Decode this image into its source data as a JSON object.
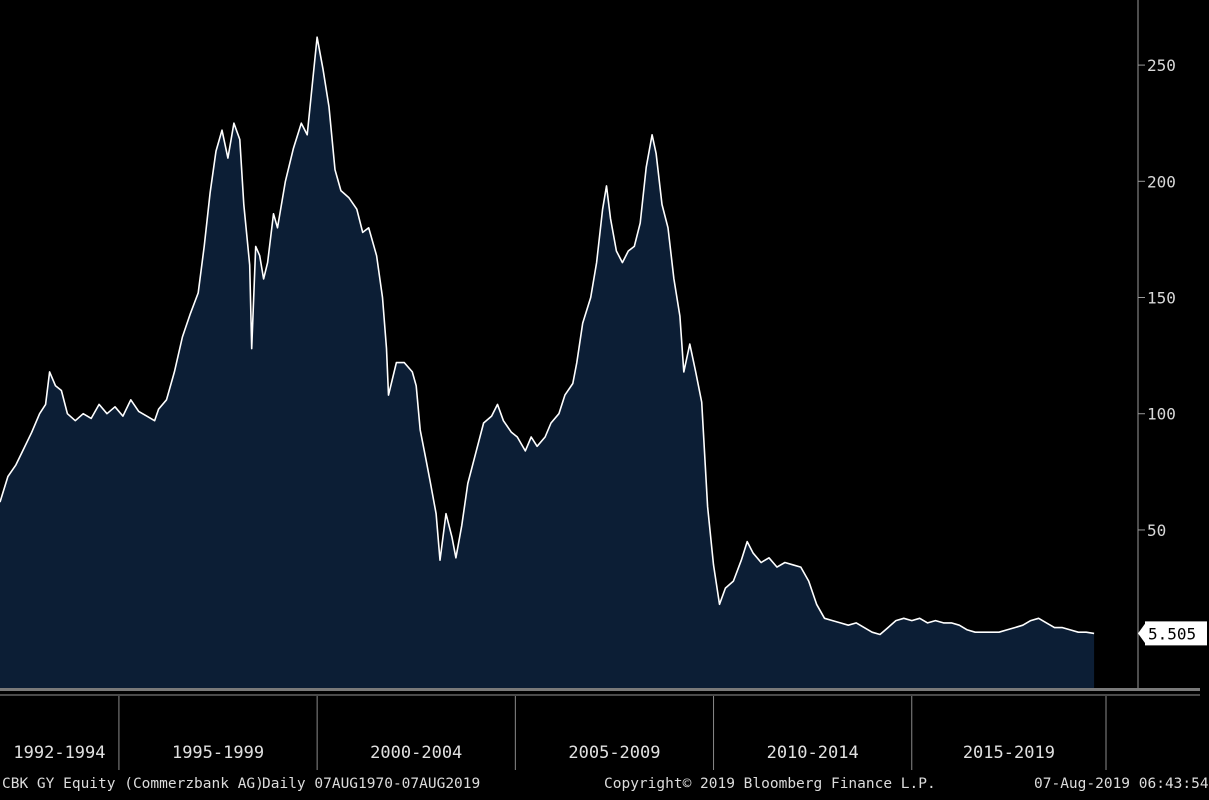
{
  "chart_data": {
    "type": "area",
    "last_value_label": "5.505",
    "x_period_labels": [
      "1992-1994",
      "1995-1999",
      "2000-2004",
      "2005-2009",
      "2010-2014",
      "2015-2019"
    ],
    "y_ticks": [
      50,
      100,
      150,
      200,
      250
    ],
    "ylim": [
      -18,
      278
    ],
    "xlim": [
      1992.0,
      2019.9
    ],
    "grid": false,
    "series": [
      {
        "points": [
          [
            1992.0,
            62
          ],
          [
            1992.2,
            73
          ],
          [
            1992.4,
            78
          ],
          [
            1992.6,
            85
          ],
          [
            1992.8,
            92
          ],
          [
            1993.0,
            100
          ],
          [
            1993.15,
            104
          ],
          [
            1993.25,
            118
          ],
          [
            1993.4,
            112
          ],
          [
            1993.55,
            110
          ],
          [
            1993.7,
            100
          ],
          [
            1993.9,
            97
          ],
          [
            1994.1,
            100
          ],
          [
            1994.3,
            98
          ],
          [
            1994.5,
            104
          ],
          [
            1994.7,
            100
          ],
          [
            1994.9,
            103
          ],
          [
            1995.1,
            99
          ],
          [
            1995.3,
            106
          ],
          [
            1995.5,
            101
          ],
          [
            1995.7,
            99
          ],
          [
            1995.9,
            97
          ],
          [
            1996.0,
            102
          ],
          [
            1996.2,
            106
          ],
          [
            1996.4,
            118
          ],
          [
            1996.6,
            133
          ],
          [
            1996.8,
            143
          ],
          [
            1997.0,
            152
          ],
          [
            1997.15,
            172
          ],
          [
            1997.3,
            195
          ],
          [
            1997.45,
            213
          ],
          [
            1997.6,
            222
          ],
          [
            1997.75,
            210
          ],
          [
            1997.9,
            225
          ],
          [
            1998.05,
            218
          ],
          [
            1998.15,
            190
          ],
          [
            1998.3,
            164
          ],
          [
            1998.35,
            128
          ],
          [
            1998.45,
            172
          ],
          [
            1998.55,
            168
          ],
          [
            1998.65,
            158
          ],
          [
            1998.75,
            165
          ],
          [
            1998.9,
            186
          ],
          [
            1999.0,
            180
          ],
          [
            1999.2,
            200
          ],
          [
            1999.4,
            214
          ],
          [
            1999.6,
            225
          ],
          [
            1999.75,
            220
          ],
          [
            1999.85,
            237
          ],
          [
            2000.0,
            262
          ],
          [
            2000.15,
            248
          ],
          [
            2000.3,
            232
          ],
          [
            2000.45,
            205
          ],
          [
            2000.6,
            196
          ],
          [
            2000.8,
            193
          ],
          [
            2001.0,
            188
          ],
          [
            2001.15,
            178
          ],
          [
            2001.3,
            180
          ],
          [
            2001.5,
            168
          ],
          [
            2001.65,
            150
          ],
          [
            2001.75,
            128
          ],
          [
            2001.8,
            108
          ],
          [
            2002.0,
            122
          ],
          [
            2002.2,
            122
          ],
          [
            2002.4,
            118
          ],
          [
            2002.5,
            112
          ],
          [
            2002.6,
            93
          ],
          [
            2002.75,
            80
          ],
          [
            2002.85,
            71
          ],
          [
            2003.0,
            57
          ],
          [
            2003.1,
            37
          ],
          [
            2003.25,
            57
          ],
          [
            2003.4,
            47
          ],
          [
            2003.5,
            38
          ],
          [
            2003.65,
            52
          ],
          [
            2003.8,
            70
          ],
          [
            2004.0,
            83
          ],
          [
            2004.2,
            96
          ],
          [
            2004.4,
            99
          ],
          [
            2004.55,
            104
          ],
          [
            2004.7,
            97
          ],
          [
            2004.9,
            92
          ],
          [
            2005.05,
            90
          ],
          [
            2005.25,
            84
          ],
          [
            2005.4,
            90
          ],
          [
            2005.55,
            86
          ],
          [
            2005.75,
            90
          ],
          [
            2005.9,
            96
          ],
          [
            2006.1,
            100
          ],
          [
            2006.25,
            108
          ],
          [
            2006.45,
            113
          ],
          [
            2006.55,
            122
          ],
          [
            2006.7,
            139
          ],
          [
            2006.9,
            150
          ],
          [
            2007.05,
            165
          ],
          [
            2007.2,
            188
          ],
          [
            2007.3,
            198
          ],
          [
            2007.4,
            184
          ],
          [
            2007.55,
            170
          ],
          [
            2007.7,
            165
          ],
          [
            2007.85,
            170
          ],
          [
            2008.0,
            172
          ],
          [
            2008.15,
            182
          ],
          [
            2008.3,
            206
          ],
          [
            2008.45,
            220
          ],
          [
            2008.55,
            212
          ],
          [
            2008.7,
            190
          ],
          [
            2008.85,
            180
          ],
          [
            2009.0,
            158
          ],
          [
            2009.15,
            142
          ],
          [
            2009.25,
            118
          ],
          [
            2009.4,
            130
          ],
          [
            2009.55,
            118
          ],
          [
            2009.7,
            105
          ],
          [
            2009.85,
            60
          ],
          [
            2010.0,
            35
          ],
          [
            2010.15,
            18
          ],
          [
            2010.3,
            25
          ],
          [
            2010.5,
            28
          ],
          [
            2010.7,
            37
          ],
          [
            2010.85,
            45
          ],
          [
            2011.0,
            40
          ],
          [
            2011.2,
            36
          ],
          [
            2011.4,
            38
          ],
          [
            2011.6,
            34
          ],
          [
            2011.8,
            36
          ],
          [
            2012.0,
            35
          ],
          [
            2012.2,
            34
          ],
          [
            2012.4,
            28
          ],
          [
            2012.6,
            18
          ],
          [
            2012.8,
            12
          ],
          [
            2013.0,
            11
          ],
          [
            2013.2,
            10
          ],
          [
            2013.4,
            9
          ],
          [
            2013.6,
            10
          ],
          [
            2013.8,
            8
          ],
          [
            2014.0,
            6
          ],
          [
            2014.2,
            5
          ],
          [
            2014.4,
            8
          ],
          [
            2014.6,
            11
          ],
          [
            2014.8,
            12
          ],
          [
            2015.0,
            11
          ],
          [
            2015.2,
            12
          ],
          [
            2015.4,
            10
          ],
          [
            2015.6,
            11
          ],
          [
            2015.8,
            10
          ],
          [
            2016.0,
            10
          ],
          [
            2016.2,
            9
          ],
          [
            2016.4,
            7
          ],
          [
            2016.6,
            6
          ],
          [
            2016.8,
            6
          ],
          [
            2017.0,
            6
          ],
          [
            2017.2,
            6
          ],
          [
            2017.4,
            7
          ],
          [
            2017.6,
            8
          ],
          [
            2017.8,
            9
          ],
          [
            2018.0,
            11
          ],
          [
            2018.2,
            12
          ],
          [
            2018.4,
            10
          ],
          [
            2018.6,
            8
          ],
          [
            2018.8,
            8
          ],
          [
            2019.0,
            7
          ],
          [
            2019.2,
            6
          ],
          [
            2019.4,
            6
          ],
          [
            2019.6,
            5.5
          ]
        ]
      }
    ]
  },
  "footer": {
    "security": "CBK GY Equity (Commerzbank AG)",
    "range": "Daily 07AUG1970-07AUG2019",
    "copyright": "Copyright© 2019 Bloomberg Finance L.P.",
    "timestamp": "07-Aug-2019 06:43:54"
  },
  "colors": {
    "background": "#000000",
    "area_fill": "#0c1e35",
    "line": "#ffffff",
    "axis": "#9a9a9a",
    "last_label_bg": "#ffffff"
  }
}
